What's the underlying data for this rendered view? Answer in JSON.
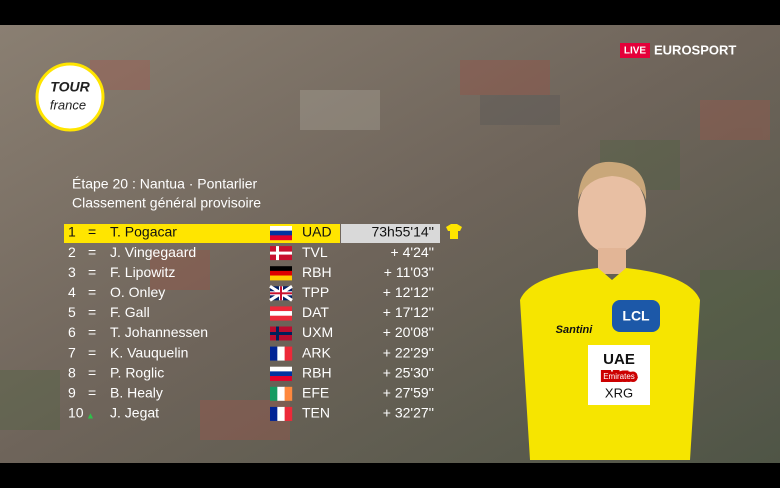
{
  "broadcast": {
    "live": "LIVE",
    "channel": "EUROSPORT",
    "logo_top": "TOUR",
    "logo_bottom": "france"
  },
  "header": {
    "stage": "Étape 20 : Nantua · Pontarlier",
    "title": "Classement général provisoire"
  },
  "table": {
    "rows": [
      {
        "rank": "1",
        "move": "=",
        "name": "T. Pogacar",
        "team": "UAD",
        "time": "73h55'14''"
      },
      {
        "rank": "2",
        "move": "=",
        "name": "J. Vingegaard",
        "team": "TVL",
        "time": "+ 4'24''"
      },
      {
        "rank": "3",
        "move": "=",
        "name": "F. Lipowitz",
        "team": "RBH",
        "time": "+ 11'03''"
      },
      {
        "rank": "4",
        "move": "=",
        "name": "O. Onley",
        "team": "TPP",
        "time": "+ 12'12''"
      },
      {
        "rank": "5",
        "move": "=",
        "name": "F. Gall",
        "team": "DAT",
        "time": "+ 17'12''"
      },
      {
        "rank": "6",
        "move": "=",
        "name": "T. Johannessen",
        "team": "UXM",
        "time": "+ 20'08''"
      },
      {
        "rank": "7",
        "move": "=",
        "name": "K. Vauquelin",
        "team": "ARK",
        "time": "+ 22'29''"
      },
      {
        "rank": "8",
        "move": "=",
        "name": "P. Roglic",
        "team": "RBH",
        "time": "+ 25'30''"
      },
      {
        "rank": "9",
        "move": "=",
        "name": "B. Healy",
        "team": "EFE",
        "time": "+ 27'59''"
      },
      {
        "rank": "10",
        "move": "▲",
        "name": "J. Jegat",
        "team": "TEN",
        "time": "+ 32'27''"
      }
    ]
  },
  "jersey": {
    "sponsor": "LCL",
    "team_top": "UAE",
    "team_mid": "Emirates",
    "team_bottom": "XRG",
    "maker": "Santini"
  }
}
